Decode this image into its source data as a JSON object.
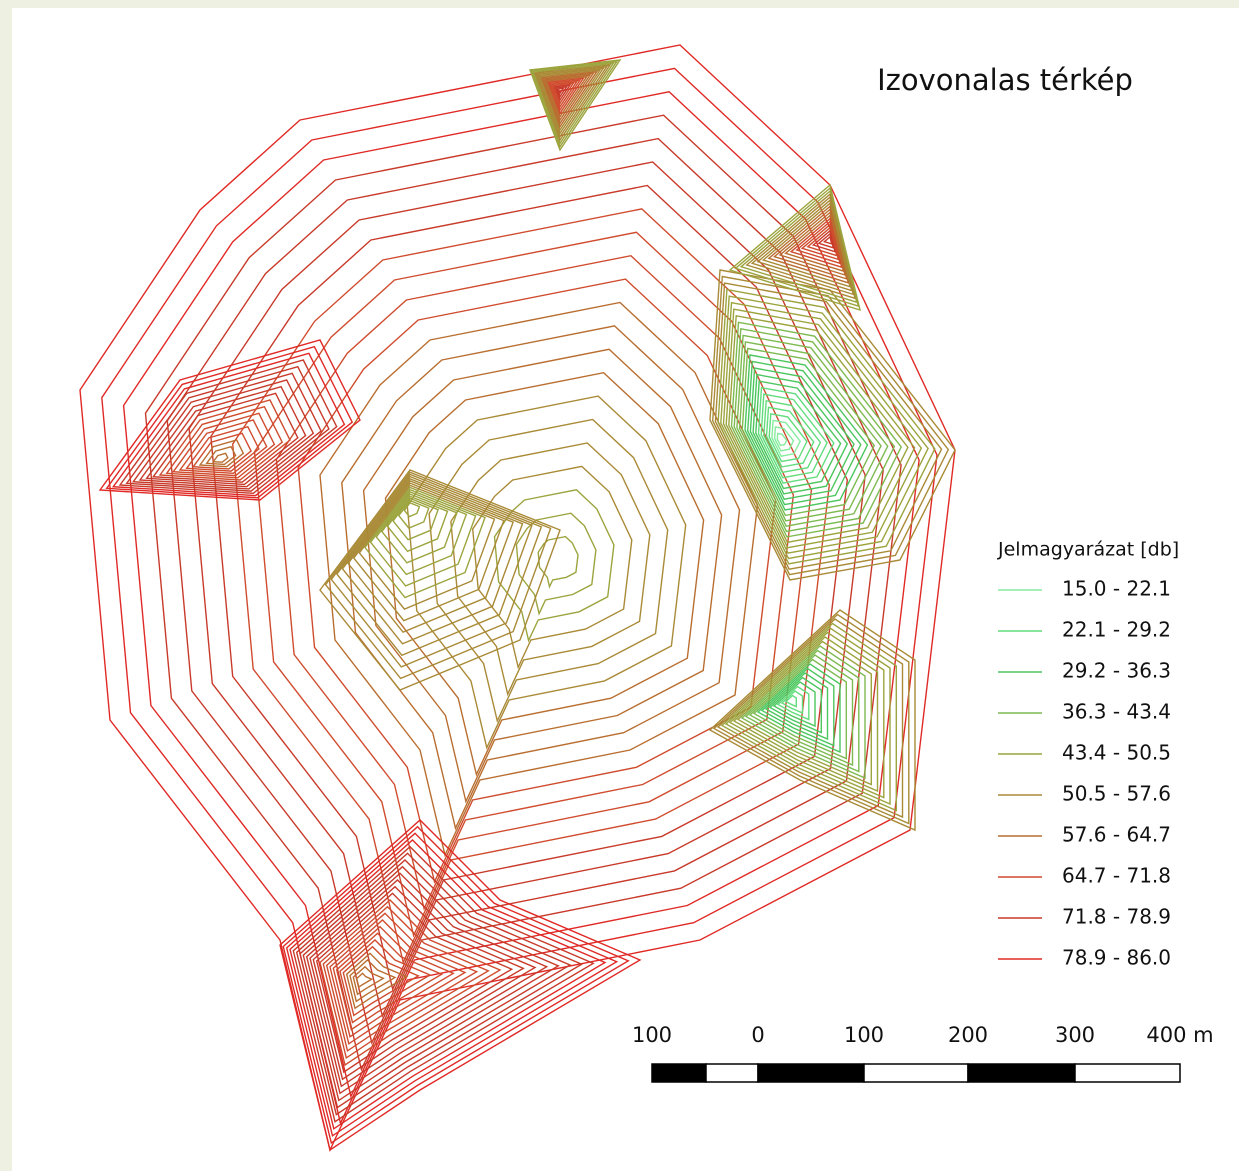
{
  "title": "Izovonalas térkép",
  "legend": {
    "title": "Jelmagyarázat [db]",
    "items": [
      {
        "label": "15.0 - 22.1",
        "color": "#86ec9e"
      },
      {
        "label": "22.1 - 29.2",
        "color": "#62dc7c"
      },
      {
        "label": "29.2 - 36.3",
        "color": "#4cc65e"
      },
      {
        "label": "36.3 - 43.4",
        "color": "#7dba50"
      },
      {
        "label": "43.4 - 50.5",
        "color": "#9ca43e"
      },
      {
        "label": "50.5 - 57.6",
        "color": "#a98a36"
      },
      {
        "label": "57.6 - 64.7",
        "color": "#b96e30"
      },
      {
        "label": "64.7 - 71.8",
        "color": "#d04c2e"
      },
      {
        "label": "71.8 - 78.9",
        "color": "#c83a2a"
      },
      {
        "label": "78.9 - 86.0",
        "color": "#e02a26"
      }
    ]
  },
  "scale_bar": {
    "labels": [
      "100",
      "0",
      "100",
      "200",
      "300",
      "400 m"
    ]
  }
}
